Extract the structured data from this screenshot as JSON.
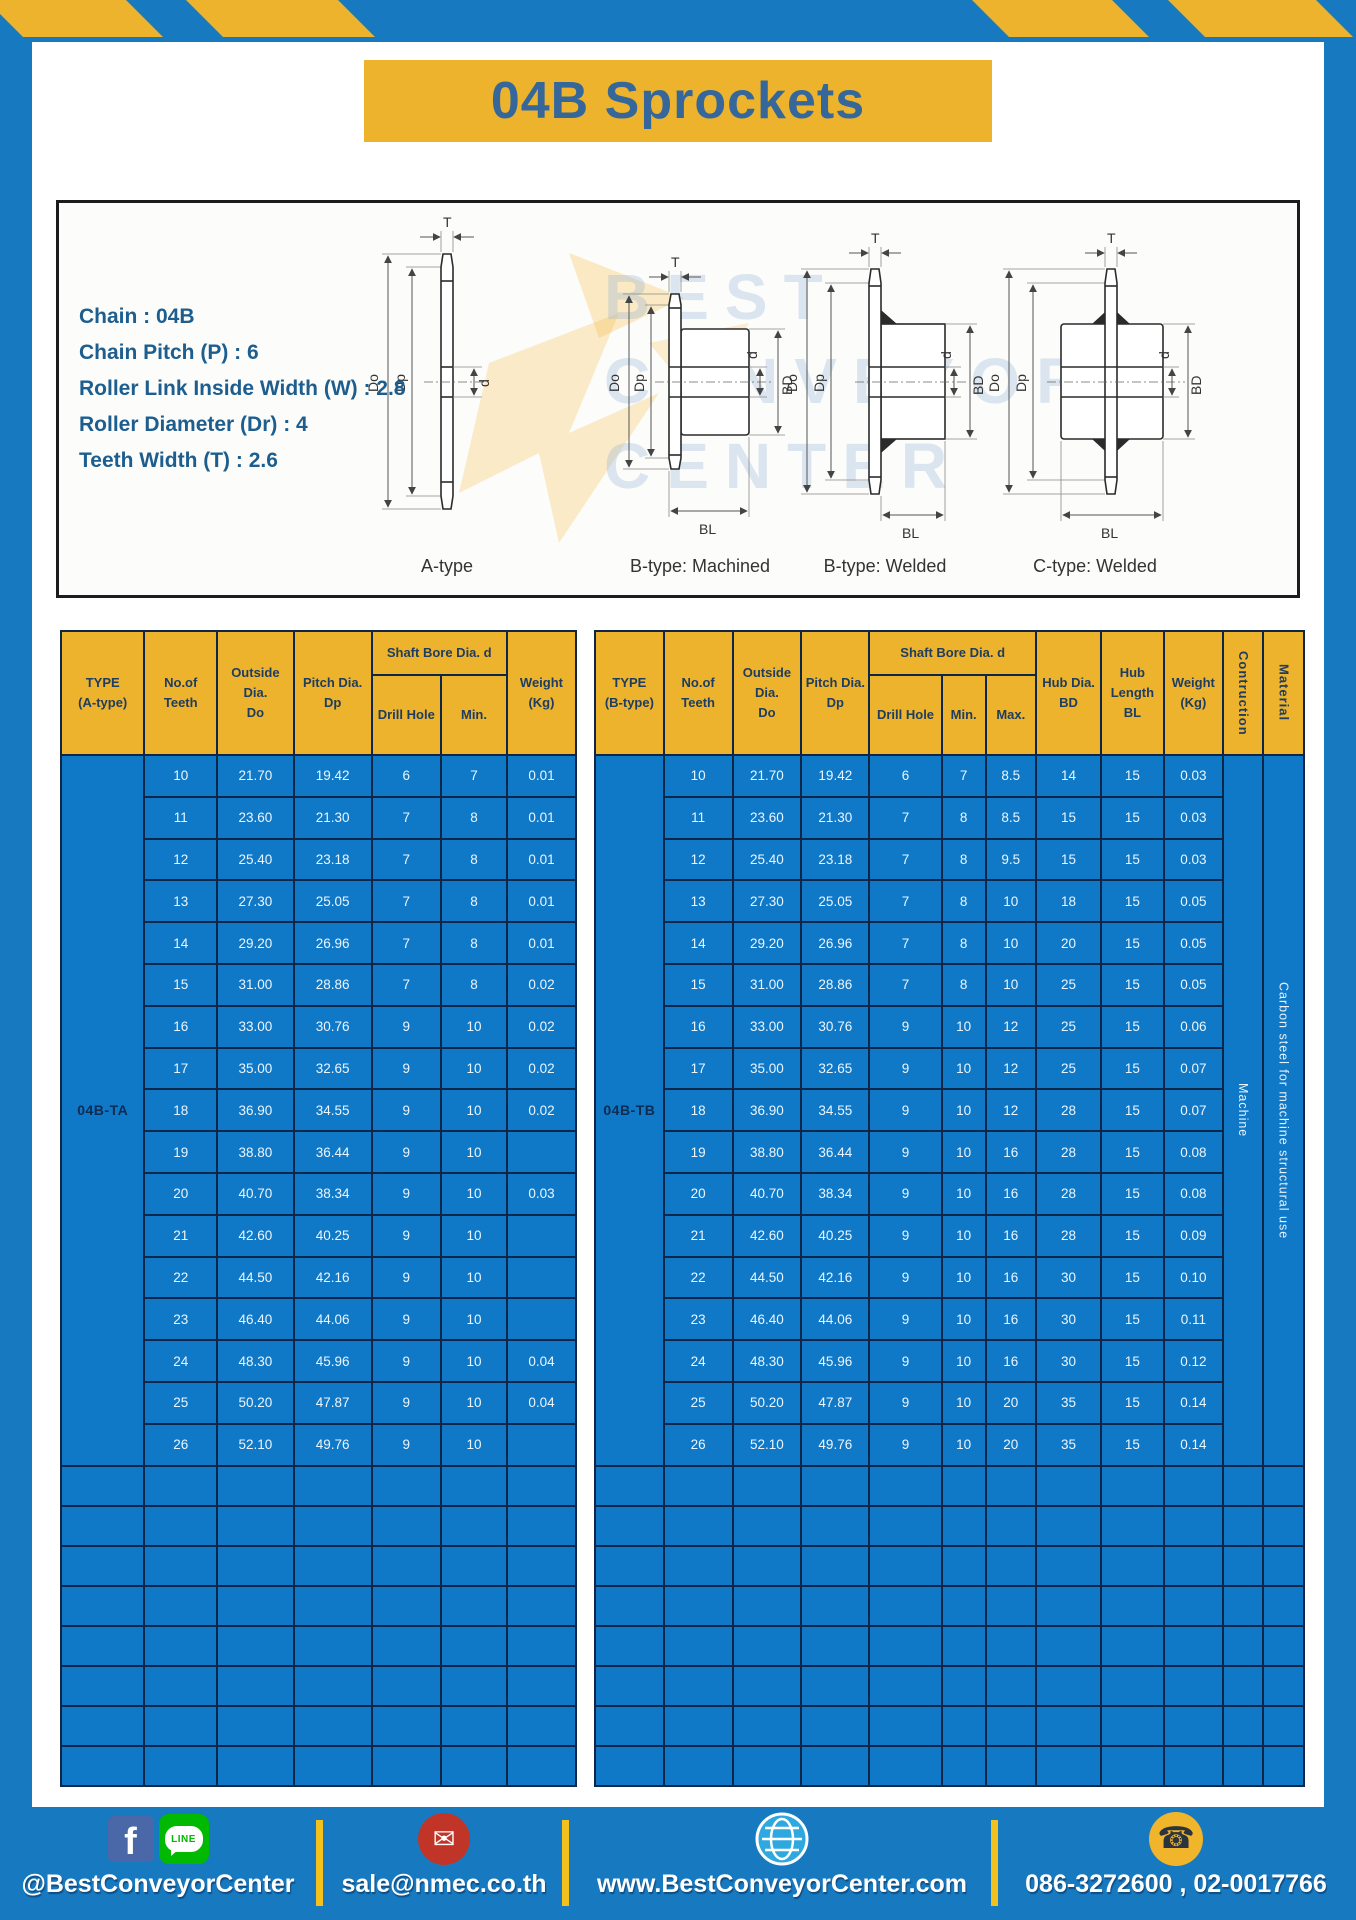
{
  "page": {
    "title": "04B Sprockets"
  },
  "specs": {
    "lines": [
      "Chain : 04B",
      "Chain Pitch (P) : 6",
      "Roller Link Inside Width (W) : 2.8",
      "Roller Diameter (Dr) : 4",
      "Teeth Width (T) : 2.6"
    ]
  },
  "drawings": {
    "captions": [
      "A-type",
      "B-type: Machined",
      "B-type: Welded",
      "C-type: Welded"
    ],
    "dims": {
      "t": "T",
      "outer": "Do",
      "pitch": "Dp",
      "bore": "d",
      "hub": "BD",
      "hublen": "BL"
    }
  },
  "watermark": {
    "text": "BEST\nCONVEYOR\nCENTER"
  },
  "table_a": {
    "headers": {
      "type": "TYPE\n(A-type)",
      "teeth": "No.of\nTeeth",
      "outside": "Outside\nDia.\nDo",
      "pitch": "Pitch Dia.\nDp",
      "shaft": "Shaft Bore Dia. d",
      "drill": "Drill Hole",
      "min": "Min.",
      "weight": "Weight\n(Kg)"
    },
    "type_label": "04B-TA",
    "rows": [
      [
        "10",
        "21.70",
        "19.42",
        "6",
        "7",
        "0.01"
      ],
      [
        "11",
        "23.60",
        "21.30",
        "7",
        "8",
        "0.01"
      ],
      [
        "12",
        "25.40",
        "23.18",
        "7",
        "8",
        "0.01"
      ],
      [
        "13",
        "27.30",
        "25.05",
        "7",
        "8",
        "0.01"
      ],
      [
        "14",
        "29.20",
        "26.96",
        "7",
        "8",
        "0.01"
      ],
      [
        "15",
        "31.00",
        "28.86",
        "7",
        "8",
        "0.02"
      ],
      [
        "16",
        "33.00",
        "30.76",
        "9",
        "10",
        "0.02"
      ],
      [
        "17",
        "35.00",
        "32.65",
        "9",
        "10",
        "0.02"
      ],
      [
        "18",
        "36.90",
        "34.55",
        "9",
        "10",
        "0.02"
      ],
      [
        "19",
        "38.80",
        "36.44",
        "9",
        "10",
        ""
      ],
      [
        "20",
        "40.70",
        "38.34",
        "9",
        "10",
        "0.03"
      ],
      [
        "21",
        "42.60",
        "40.25",
        "9",
        "10",
        ""
      ],
      [
        "22",
        "44.50",
        "42.16",
        "9",
        "10",
        ""
      ],
      [
        "23",
        "46.40",
        "44.06",
        "9",
        "10",
        ""
      ],
      [
        "24",
        "48.30",
        "45.96",
        "9",
        "10",
        "0.04"
      ],
      [
        "25",
        "50.20",
        "47.87",
        "9",
        "10",
        "0.04"
      ],
      [
        "26",
        "52.10",
        "49.76",
        "9",
        "10",
        ""
      ]
    ],
    "empty_rows": 8,
    "empty_cols": 7
  },
  "table_b": {
    "headers": {
      "type": "TYPE\n(B-type)",
      "teeth": "No.of\nTeeth",
      "outside": "Outside\nDia.\nDo",
      "pitch": "Pitch Dia.\nDp",
      "shaft": "Shaft Bore Dia. d",
      "drill": "Drill Hole",
      "min": "Min.",
      "max": "Max.",
      "hub_dia": "Hub Dia.\nBD",
      "hub_len": "Hub\nLength\nBL",
      "weight": "Weight\n(Kg)",
      "construction": "Contruction",
      "material": "Material"
    },
    "type_label": "04B-TB",
    "construction": "Machine",
    "material": "Carbon steel for machine structural use",
    "rows": [
      [
        "10",
        "21.70",
        "19.42",
        "6",
        "7",
        "8.5",
        "14",
        "15",
        "0.03"
      ],
      [
        "11",
        "23.60",
        "21.30",
        "7",
        "8",
        "8.5",
        "15",
        "15",
        "0.03"
      ],
      [
        "12",
        "25.40",
        "23.18",
        "7",
        "8",
        "9.5",
        "15",
        "15",
        "0.03"
      ],
      [
        "13",
        "27.30",
        "25.05",
        "7",
        "8",
        "10",
        "18",
        "15",
        "0.05"
      ],
      [
        "14",
        "29.20",
        "26.96",
        "7",
        "8",
        "10",
        "20",
        "15",
        "0.05"
      ],
      [
        "15",
        "31.00",
        "28.86",
        "7",
        "8",
        "10",
        "25",
        "15",
        "0.05"
      ],
      [
        "16",
        "33.00",
        "30.76",
        "9",
        "10",
        "12",
        "25",
        "15",
        "0.06"
      ],
      [
        "17",
        "35.00",
        "32.65",
        "9",
        "10",
        "12",
        "25",
        "15",
        "0.07"
      ],
      [
        "18",
        "36.90",
        "34.55",
        "9",
        "10",
        "12",
        "28",
        "15",
        "0.07"
      ],
      [
        "19",
        "38.80",
        "36.44",
        "9",
        "10",
        "16",
        "28",
        "15",
        "0.08"
      ],
      [
        "20",
        "40.70",
        "38.34",
        "9",
        "10",
        "16",
        "28",
        "15",
        "0.08"
      ],
      [
        "21",
        "42.60",
        "40.25",
        "9",
        "10",
        "16",
        "28",
        "15",
        "0.09"
      ],
      [
        "22",
        "44.50",
        "42.16",
        "9",
        "10",
        "16",
        "30",
        "15",
        "0.10"
      ],
      [
        "23",
        "46.40",
        "44.06",
        "9",
        "10",
        "16",
        "30",
        "15",
        "0.11"
      ],
      [
        "24",
        "48.30",
        "45.96",
        "9",
        "10",
        "16",
        "30",
        "15",
        "0.12"
      ],
      [
        "25",
        "50.20",
        "47.87",
        "9",
        "10",
        "20",
        "35",
        "15",
        "0.14"
      ],
      [
        "26",
        "52.10",
        "49.76",
        "9",
        "10",
        "20",
        "35",
        "15",
        "0.14"
      ]
    ],
    "empty_rows": 8,
    "empty_cols": 12
  },
  "footer": {
    "social": "@BestConveyorCenter",
    "facebook_glyph": "f",
    "line_label": "LINE",
    "email": "sale@nmec.co.th",
    "website": "www.BestConveyorCenter.com",
    "phone": "086-3272600 , 02-0017766",
    "icons": {
      "email": "✉",
      "phone": "☎"
    }
  },
  "colors": {
    "frame_blue": "#1779BF",
    "cell_blue": "#0F79C8",
    "header_yellow": "#EDB32C",
    "border_navy": "#0E2748",
    "title_blue": "#35679B",
    "email_red": "#C13528",
    "line_green": "#00B900",
    "facebook_blue": "#4A68A8",
    "phone_yellow": "#F1B52B"
  }
}
